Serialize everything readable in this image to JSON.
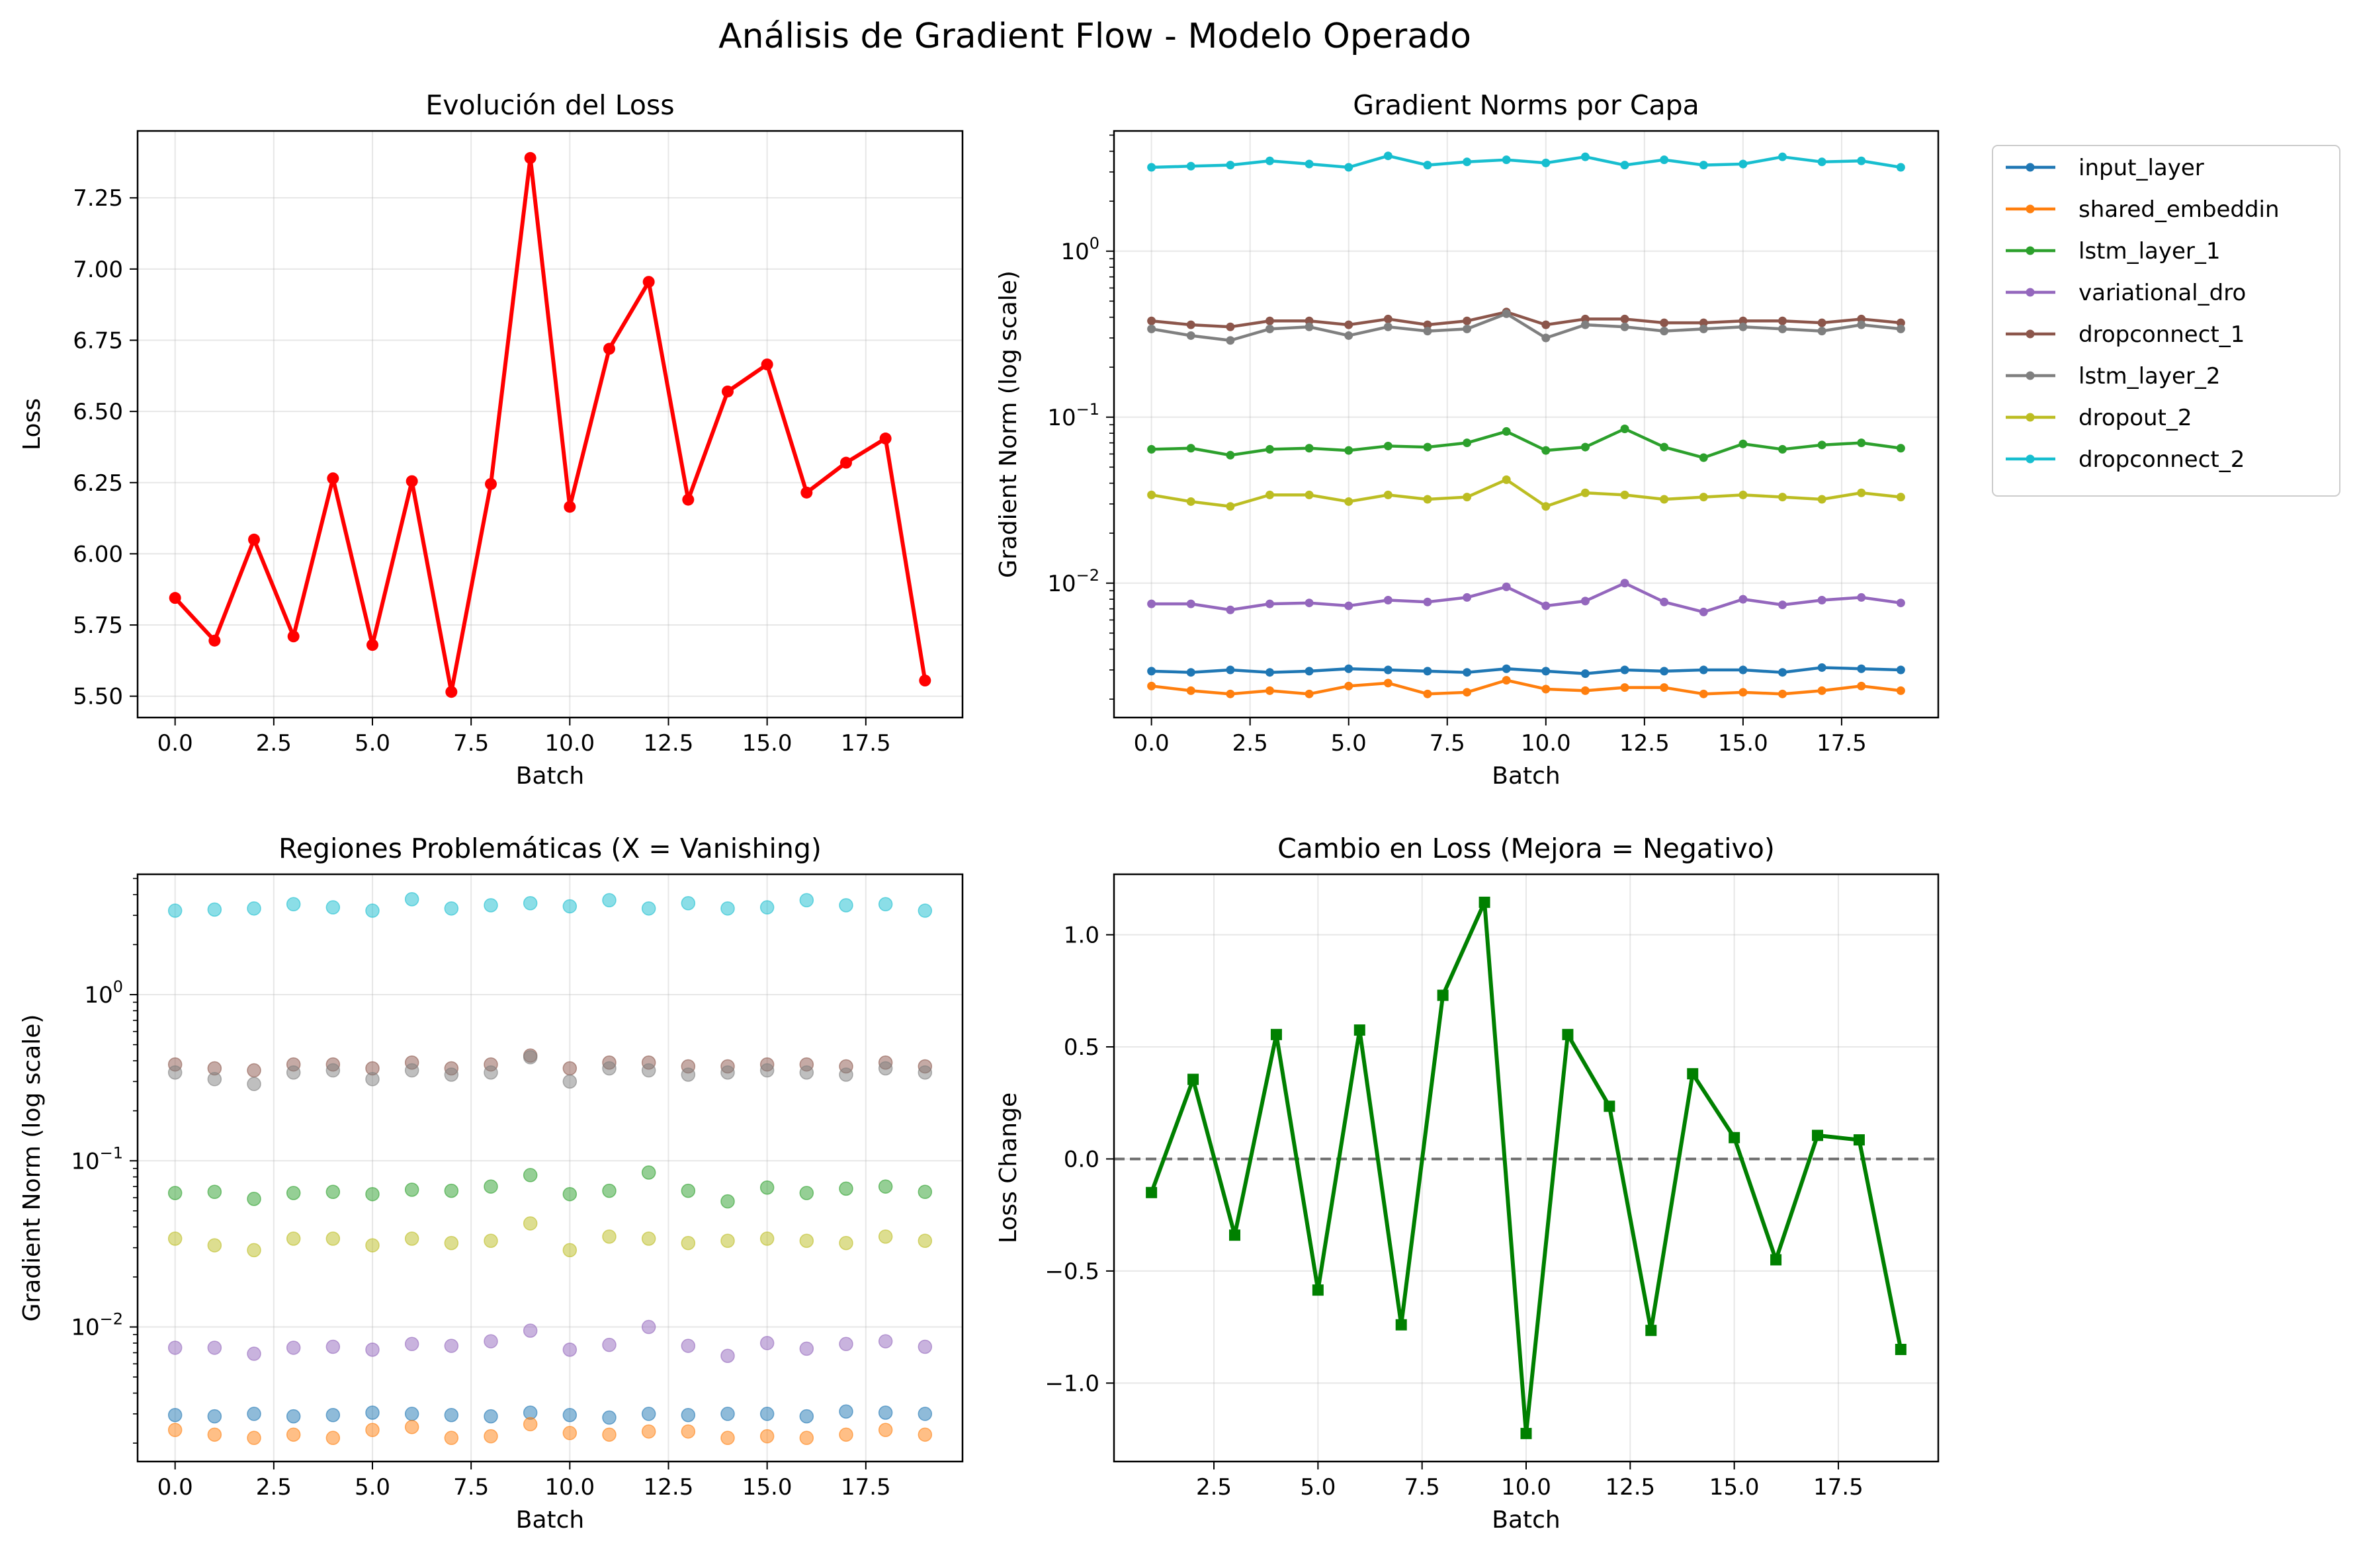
{
  "suptitle": "Análisis de Gradient Flow - Modelo Operado",
  "layer_colors": [
    "#1f77b4",
    "#ff7f0e",
    "#2ca02c",
    "#9467bd",
    "#8c564b",
    "#7f7f7f",
    "#bcbd22",
    "#17becf"
  ],
  "chart_data": [
    {
      "id": "loss",
      "type": "line",
      "title": "Evolución del Loss",
      "xlabel": "Batch",
      "ylabel": "Loss",
      "xlim": [
        -0.95,
        19.95
      ],
      "ylim": [
        5.425,
        7.485
      ],
      "xticks": [
        0,
        2.5,
        5,
        7.5,
        10,
        12.5,
        15,
        17.5
      ],
      "xtick_labels": [
        "0.0",
        "2.5",
        "5.0",
        "7.5",
        "10.0",
        "12.5",
        "15.0",
        "17.5"
      ],
      "yticks": [
        5.5,
        5.75,
        6.0,
        6.25,
        6.5,
        6.75,
        7.0,
        7.25
      ],
      "ytick_labels": [
        "5.50",
        "5.75",
        "6.00",
        "6.25",
        "6.50",
        "6.75",
        "7.00",
        "7.25"
      ],
      "grid": true,
      "color": "#ff0000",
      "marker": "circle",
      "x": [
        0,
        1,
        2,
        3,
        4,
        5,
        6,
        7,
        8,
        9,
        10,
        11,
        12,
        13,
        14,
        15,
        16,
        17,
        18,
        19
      ],
      "y": [
        5.845,
        5.695,
        6.05,
        5.71,
        6.265,
        5.68,
        6.255,
        5.515,
        6.245,
        7.39,
        6.165,
        6.72,
        6.955,
        6.19,
        6.57,
        6.665,
        6.215,
        6.32,
        6.405,
        5.555
      ]
    },
    {
      "id": "norms",
      "type": "line",
      "title": "Gradient Norms por Capa",
      "xlabel": "Batch",
      "ylabel": "Gradient Norm (log scale)",
      "yscale": "log",
      "xlim": [
        -0.95,
        19.95
      ],
      "ylim": [
        0.00155,
        5.3
      ],
      "xticks": [
        0,
        2.5,
        5,
        7.5,
        10,
        12.5,
        15,
        17.5
      ],
      "xtick_labels": [
        "0.0",
        "2.5",
        "5.0",
        "7.5",
        "10.0",
        "12.5",
        "15.0",
        "17.5"
      ],
      "yticks_major": [
        0.01,
        0.1,
        1
      ],
      "ytick_labels": [
        [
          "10",
          "−2"
        ],
        [
          "10",
          "−1"
        ],
        [
          "10",
          "0"
        ]
      ],
      "grid": true,
      "legend": "outside-right",
      "series": [
        {
          "name": "input_layer",
          "color": "#1f77b4",
          "values": [
            0.00295,
            0.0029,
            0.003,
            0.0029,
            0.00295,
            0.00305,
            0.003,
            0.00295,
            0.0029,
            0.00305,
            0.00295,
            0.00285,
            0.003,
            0.00295,
            0.003,
            0.003,
            0.0029,
            0.0031,
            0.00305,
            0.003
          ]
        },
        {
          "name": "shared_embeddin",
          "color": "#ff7f0e",
          "values": [
            0.0024,
            0.00225,
            0.00215,
            0.00225,
            0.00215,
            0.0024,
            0.0025,
            0.00215,
            0.0022,
            0.0026,
            0.0023,
            0.00225,
            0.00235,
            0.00235,
            0.00215,
            0.0022,
            0.00215,
            0.00225,
            0.0024,
            0.00225
          ]
        },
        {
          "name": "lstm_layer_1",
          "color": "#2ca02c",
          "values": [
            0.064,
            0.065,
            0.059,
            0.064,
            0.065,
            0.063,
            0.067,
            0.066,
            0.07,
            0.082,
            0.063,
            0.066,
            0.085,
            0.066,
            0.057,
            0.069,
            0.064,
            0.068,
            0.07,
            0.065
          ]
        },
        {
          "name": "variational_dro",
          "color": "#9467bd",
          "values": [
            0.0075,
            0.0075,
            0.0069,
            0.0075,
            0.0076,
            0.0073,
            0.0079,
            0.0077,
            0.0082,
            0.0095,
            0.0073,
            0.0078,
            0.01,
            0.0077,
            0.0067,
            0.008,
            0.0074,
            0.0079,
            0.0082,
            0.0076
          ]
        },
        {
          "name": "dropconnect_1",
          "color": "#8c564b",
          "values": [
            0.38,
            0.36,
            0.35,
            0.38,
            0.38,
            0.36,
            0.39,
            0.36,
            0.38,
            0.43,
            0.36,
            0.39,
            0.39,
            0.37,
            0.37,
            0.38,
            0.38,
            0.37,
            0.39,
            0.37
          ]
        },
        {
          "name": "lstm_layer_2",
          "color": "#7f7f7f",
          "values": [
            0.34,
            0.31,
            0.29,
            0.34,
            0.35,
            0.31,
            0.35,
            0.33,
            0.34,
            0.42,
            0.3,
            0.36,
            0.35,
            0.33,
            0.34,
            0.35,
            0.34,
            0.33,
            0.36,
            0.34
          ]
        },
        {
          "name": "dropout_2",
          "color": "#bcbd22",
          "values": [
            0.034,
            0.031,
            0.029,
            0.034,
            0.034,
            0.031,
            0.034,
            0.032,
            0.033,
            0.042,
            0.029,
            0.035,
            0.034,
            0.032,
            0.033,
            0.034,
            0.033,
            0.032,
            0.035,
            0.033
          ]
        },
        {
          "name": "dropconnect_2",
          "color": "#17becf",
          "values": [
            3.2,
            3.25,
            3.3,
            3.5,
            3.35,
            3.2,
            3.75,
            3.3,
            3.45,
            3.55,
            3.4,
            3.7,
            3.3,
            3.55,
            3.3,
            3.35,
            3.7,
            3.45,
            3.5,
            3.2
          ]
        }
      ]
    },
    {
      "id": "regions",
      "type": "scatter",
      "title": "Regiones Problemáticas (X = Vanishing)",
      "xlabel": "Batch",
      "ylabel": "Gradient Norm (log scale)",
      "yscale": "log",
      "xlim": [
        -0.95,
        19.95
      ],
      "ylim": [
        0.00155,
        5.3
      ],
      "xticks": [
        0,
        2.5,
        5,
        7.5,
        10,
        12.5,
        15,
        17.5
      ],
      "xtick_labels": [
        "0.0",
        "2.5",
        "5.0",
        "7.5",
        "10.0",
        "12.5",
        "15.0",
        "17.5"
      ],
      "yticks_major": [
        0.01,
        0.1,
        1
      ],
      "ytick_labels": [
        [
          "10",
          "−2"
        ],
        [
          "10",
          "−1"
        ],
        [
          "10",
          "0"
        ]
      ],
      "grid": true,
      "same_values_as": "norms"
    },
    {
      "id": "delta",
      "type": "line",
      "title": "Cambio en Loss (Mejora = Negativo)",
      "xlabel": "Batch",
      "ylabel": "Loss Change",
      "xlim": [
        0.1,
        19.9
      ],
      "ylim": [
        -1.35,
        1.27
      ],
      "xticks": [
        2.5,
        5,
        7.5,
        10,
        12.5,
        15,
        17.5
      ],
      "xtick_labels": [
        "2.5",
        "5.0",
        "7.5",
        "10.0",
        "12.5",
        "15.0",
        "17.5"
      ],
      "yticks": [
        -1.0,
        -0.5,
        0.0,
        0.5,
        1.0
      ],
      "ytick_labels": [
        "−1.0",
        "−0.5",
        "0.0",
        "0.5",
        "1.0"
      ],
      "grid": true,
      "color": "#008000",
      "marker": "square",
      "zero_line": true,
      "x": [
        1,
        2,
        3,
        4,
        5,
        6,
        7,
        8,
        9,
        10,
        11,
        12,
        13,
        14,
        15,
        16,
        17,
        18,
        19
      ],
      "y": [
        -0.15,
        0.355,
        -0.34,
        0.555,
        -0.585,
        0.575,
        -0.74,
        0.73,
        1.145,
        -1.225,
        0.555,
        0.235,
        -0.765,
        0.38,
        0.095,
        -0.45,
        0.105,
        0.085,
        -0.85
      ]
    }
  ]
}
